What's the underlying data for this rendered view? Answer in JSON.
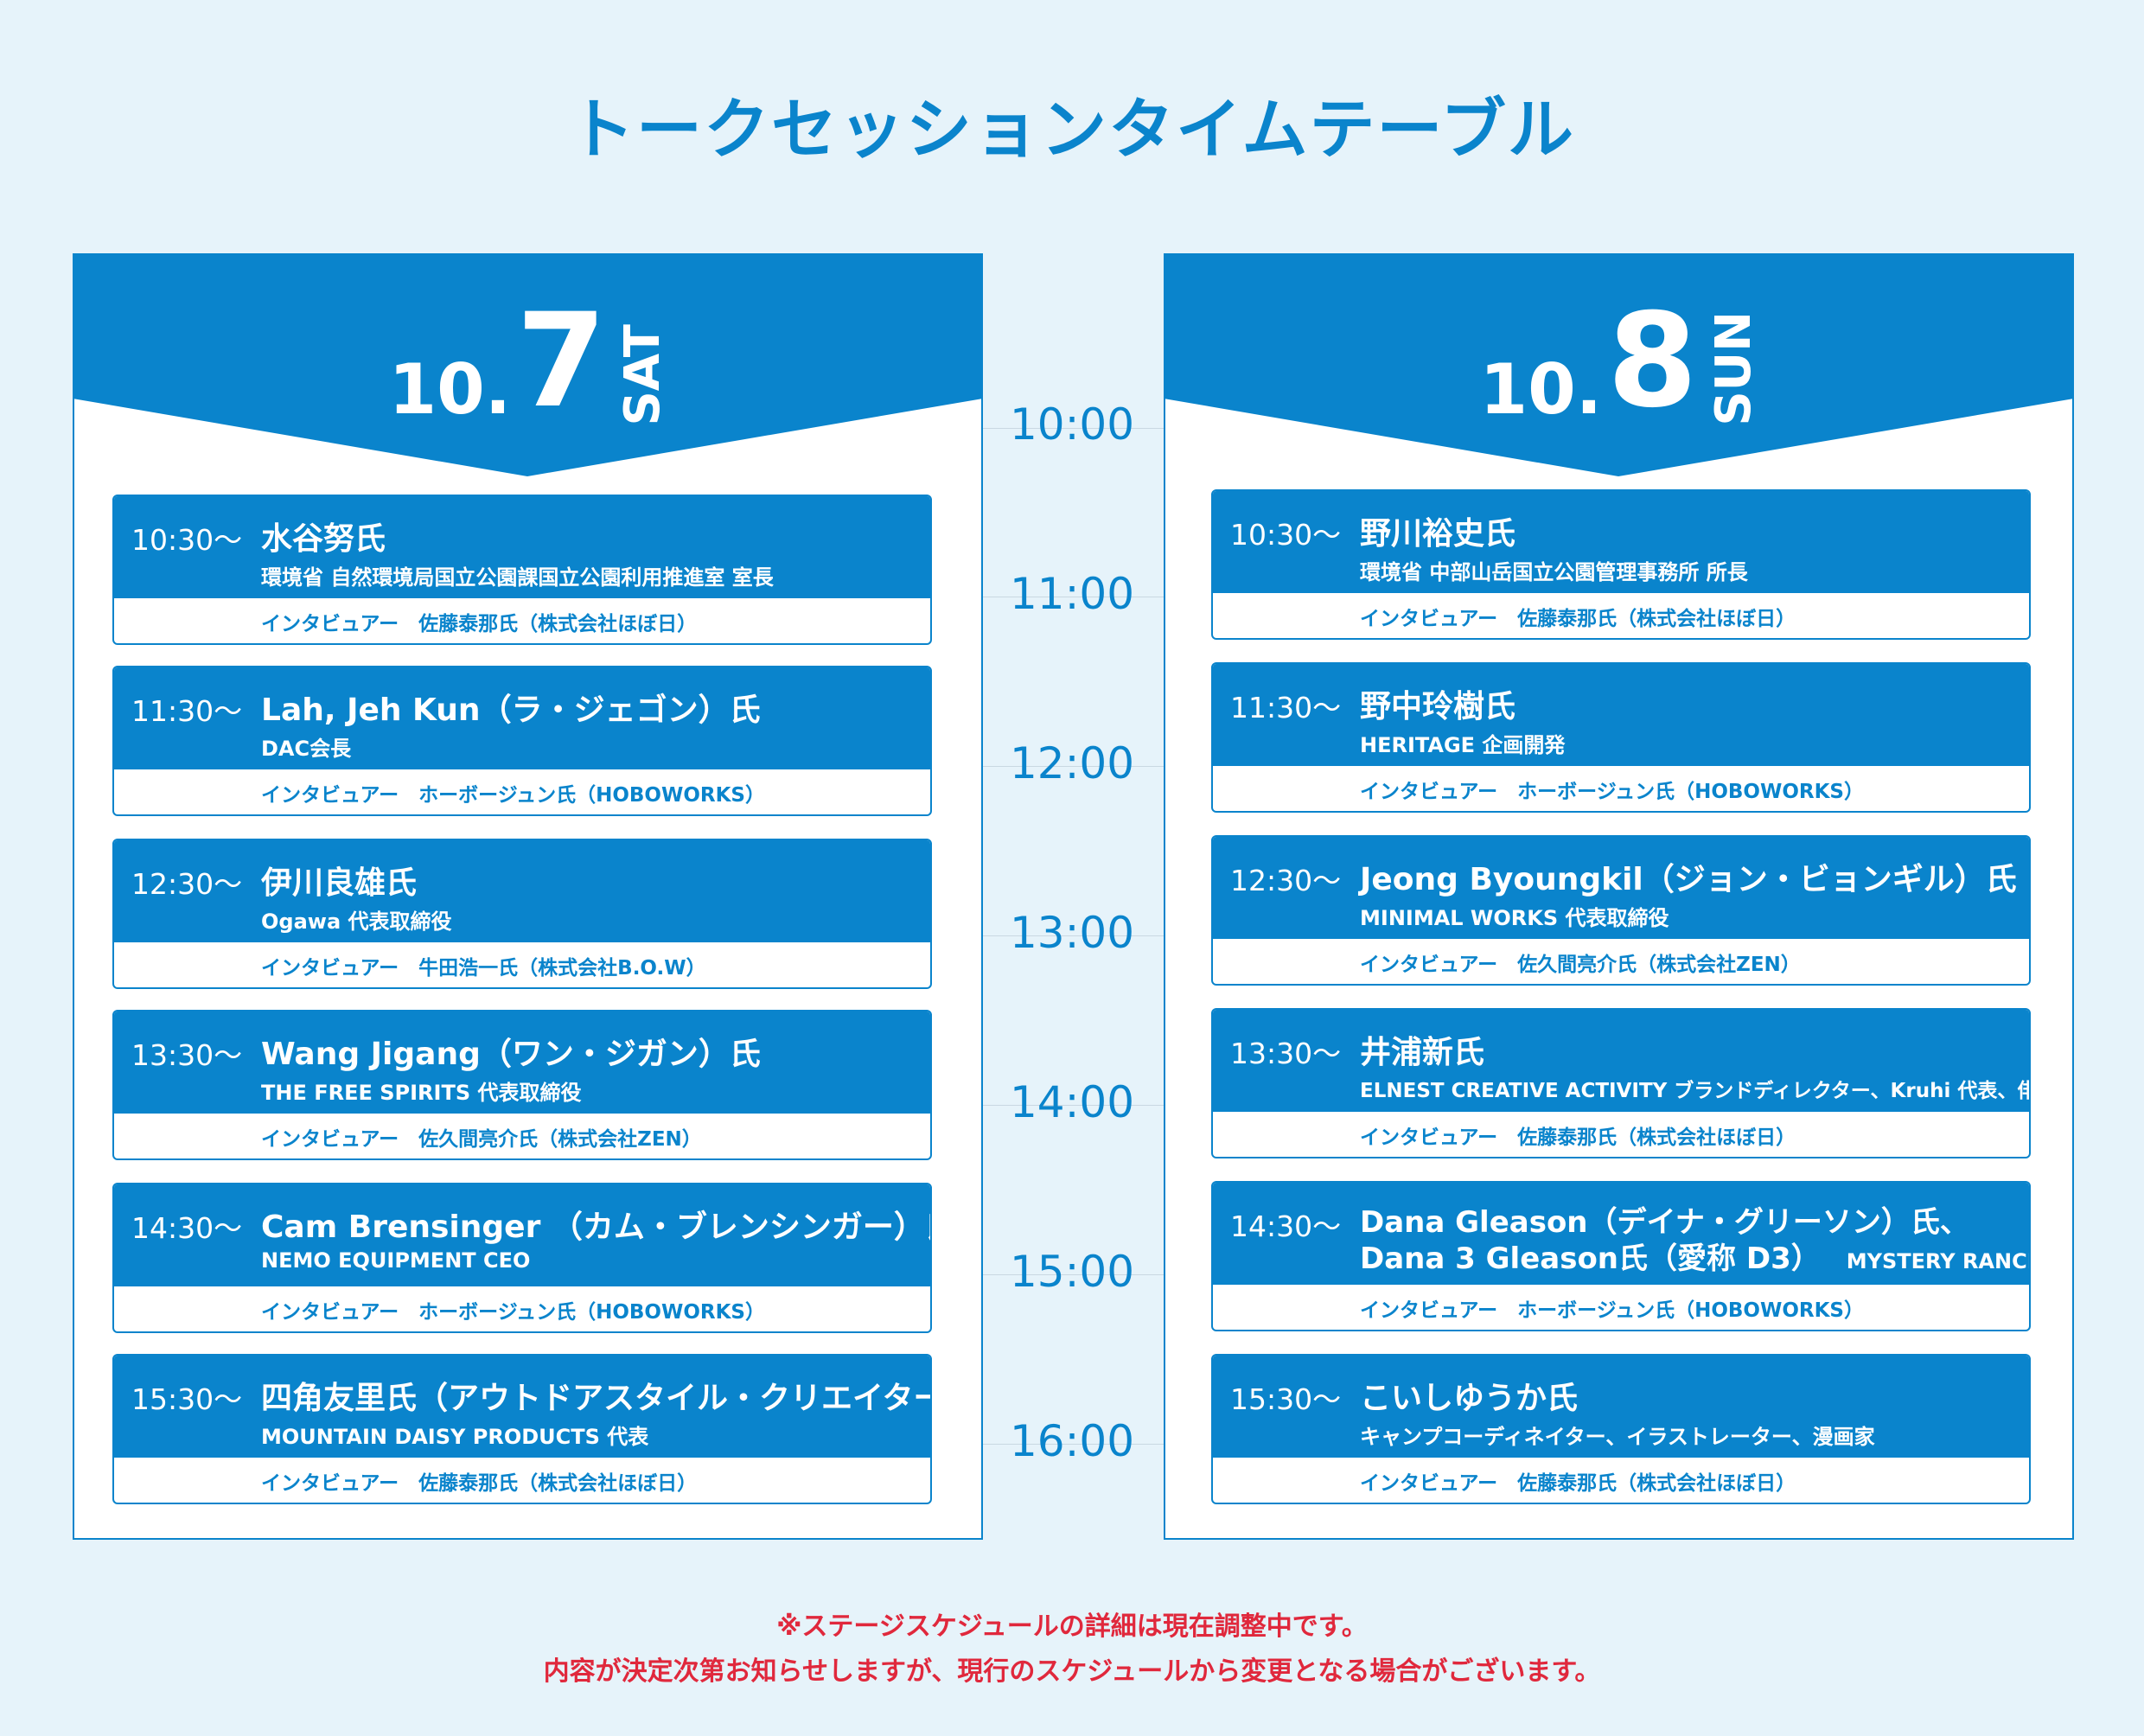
{
  "title": "トークセッションタイムテーブル",
  "hours": [
    "10:00",
    "11:00",
    "12:00",
    "13:00",
    "14:00",
    "15:00",
    "16:00"
  ],
  "day1": {
    "date_prefix": "10.",
    "date_day": "7",
    "dow": "SAT",
    "sessions": [
      {
        "time": "10:30〜",
        "name": "水谷努氏",
        "role": "環境省 自然環境局国立公園課国立公園利用推進室 室長",
        "interviewer": "インタビュアー　佐藤泰那氏（株式会社ほぼ日）"
      },
      {
        "time": "11:30〜",
        "name": "Lah, Jeh Kun（ラ・ジェゴン）氏",
        "role": "DAC会長",
        "interviewer": "インタビュアー　ホーボージュン氏（HOBOWORKS）"
      },
      {
        "time": "12:30〜",
        "name": "伊川良雄氏",
        "role": "Ogawa 代表取締役",
        "interviewer": "インタビュアー　牛田浩一氏（株式会社B.O.W）"
      },
      {
        "time": "13:30〜",
        "name": "Wang Jigang（ワン・ジガン）氏",
        "role": "THE FREE SPIRITS 代表取締役",
        "interviewer": "インタビュアー　佐久間亮介氏（株式会社ZEN）"
      },
      {
        "time": "14:30〜",
        "name": "Cam Brensinger （カム・ブレンシンガー）氏",
        "role": "NEMO EQUIPMENT CEO",
        "interviewer": "インタビュアー　ホーボージュン氏（HOBOWORKS）"
      },
      {
        "time": "15:30〜",
        "name": "四角友里氏（アウトドアスタイル・クリエイター）",
        "role": "MOUNTAIN DAISY PRODUCTS 代表",
        "interviewer": "インタビュアー　佐藤泰那氏（株式会社ほぼ日）"
      }
    ]
  },
  "day2": {
    "date_prefix": "10.",
    "date_day": "8",
    "dow": "SUN",
    "sessions": [
      {
        "time": "10:30〜",
        "name": "野川裕史氏",
        "role": "環境省 中部山岳国立公園管理事務所 所長",
        "interviewer": "インタビュアー　佐藤泰那氏（株式会社ほぼ日）"
      },
      {
        "time": "11:30〜",
        "name": "野中玲樹氏",
        "role": "HERITAGE 企画開発",
        "interviewer": "インタビュアー　ホーボージュン氏（HOBOWORKS）"
      },
      {
        "time": "12:30〜",
        "name": "Jeong Byoungkil（ジョン・ビョンギル）氏",
        "role": "MINIMAL WORKS 代表取締役",
        "interviewer": "インタビュアー　佐久間亮介氏（株式会社ZEN）"
      },
      {
        "time": "13:30〜",
        "name": "井浦新氏",
        "role": "ELNEST CREATIVE ACTIVITY ブランドディレクター、Kruhi 代表、俳優",
        "interviewer": "インタビュアー　佐藤泰那氏（株式会社ほぼ日）"
      },
      {
        "time": "14:30〜",
        "name": "Dana Gleason（デイナ・グリーソン）氏、",
        "name2": "Dana 3 Gleason氏（愛称 D3）",
        "affiliation": "MYSTERY RANCH",
        "interviewer": "インタビュアー　ホーボージュン氏（HOBOWORKS）"
      },
      {
        "time": "15:30〜",
        "name": "こいしゆうか氏",
        "role": "キャンプコーディネイター、イラストレーター、漫画家",
        "interviewer": "インタビュアー　佐藤泰那氏（株式会社ほぼ日）"
      }
    ]
  },
  "notes": [
    "※ステージスケジュールの詳細は現在調整中です。",
    "内容が決定次第お知らせしますが、現行のスケジュールから変更となる場合がございます。"
  ],
  "colors": {
    "primary": "#0a84cc",
    "background": "#e6f3fa",
    "note": "#e0283c"
  }
}
